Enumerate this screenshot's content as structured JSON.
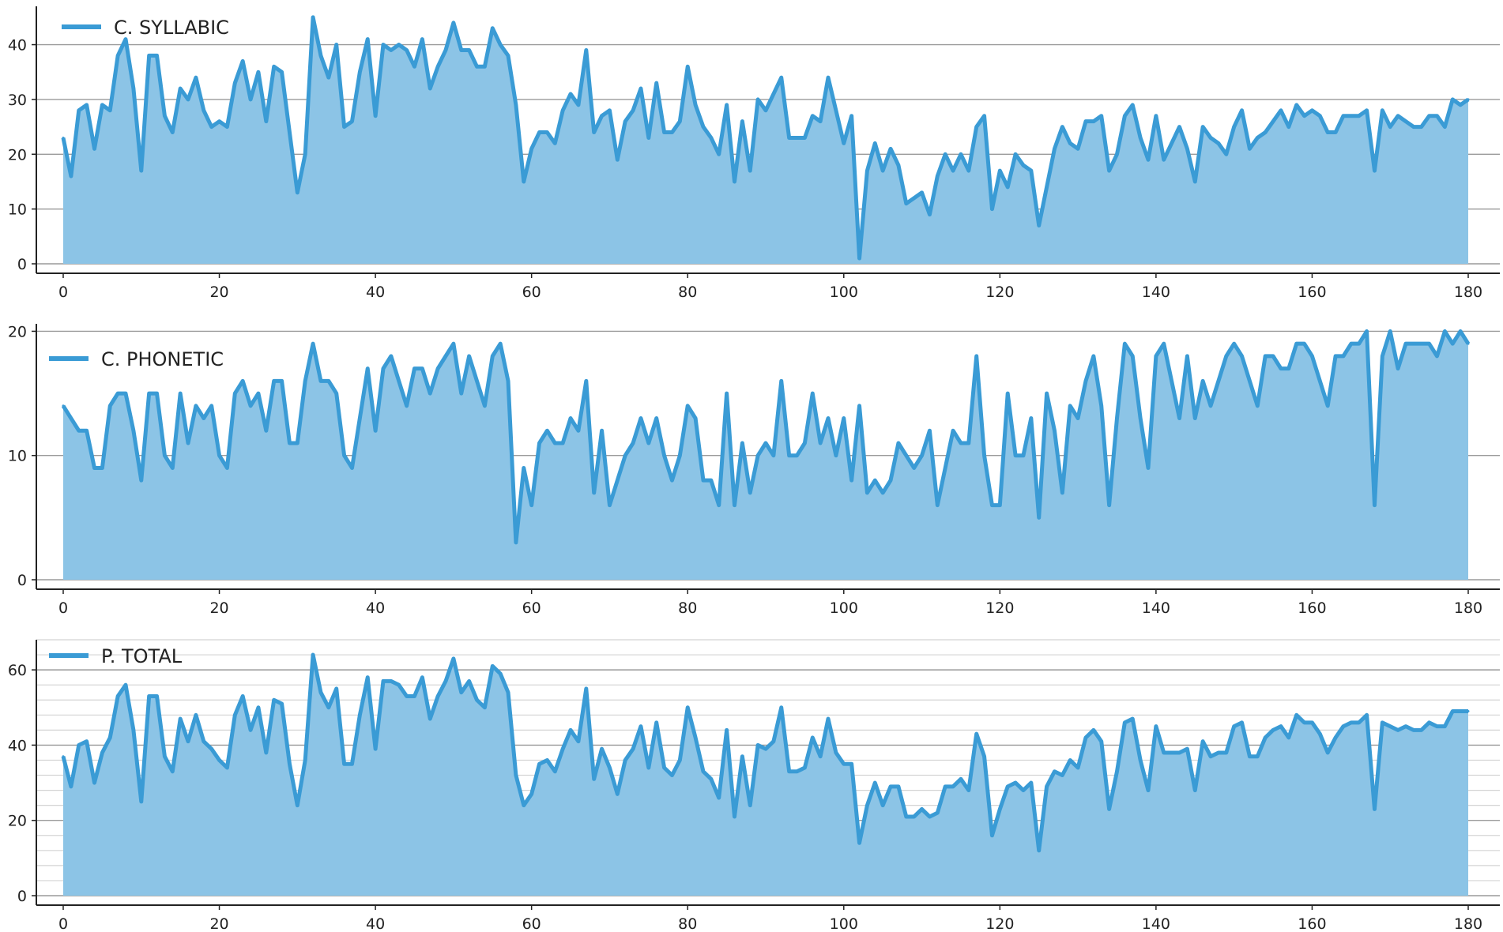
{
  "colors": {
    "line": "#3a9bd5",
    "fill": "#8cc4e6",
    "grid_major": "#9a9a9a",
    "grid_minor": "#d4d4d4",
    "axis": "#222222",
    "text": "#222222",
    "background": "#ffffff"
  },
  "chart_data": [
    {
      "type": "area",
      "series": [
        {
          "name": "C. SYLLABIC",
          "x_start": 0,
          "x_step": 1,
          "values": [
            23,
            16,
            28,
            29,
            21,
            29,
            28,
            38,
            41,
            32,
            17,
            38,
            38,
            27,
            24,
            32,
            30,
            34,
            28,
            25,
            26,
            25,
            33,
            37,
            30,
            35,
            26,
            36,
            35,
            24,
            13,
            20,
            45,
            38,
            34,
            40,
            25,
            26,
            35,
            41,
            27,
            40,
            39,
            40,
            39,
            36,
            41,
            32,
            36,
            39,
            44,
            39,
            39,
            36,
            36,
            43,
            40,
            38,
            29,
            15,
            21,
            24,
            24,
            22,
            28,
            31,
            29,
            39,
            24,
            27,
            28,
            19,
            26,
            28,
            32,
            23,
            33,
            24,
            24,
            26,
            36,
            29,
            25,
            23,
            20,
            29,
            15,
            26,
            17,
            30,
            28,
            31,
            34,
            23,
            23,
            23,
            27,
            26,
            34,
            28,
            22,
            27,
            1,
            17,
            22,
            17,
            21,
            18,
            11,
            12,
            13,
            9,
            16,
            20,
            17,
            20,
            17,
            25,
            27,
            10,
            17,
            14,
            20,
            18,
            17,
            7,
            14,
            21,
            25,
            22,
            21,
            26,
            26,
            27,
            17,
            20,
            27,
            29,
            23,
            19,
            27,
            19,
            22,
            25,
            21,
            15,
            25,
            23,
            22,
            20,
            25,
            28,
            21,
            23,
            24,
            26,
            28,
            25,
            29,
            27,
            28,
            27,
            24,
            24,
            27,
            27,
            27,
            28,
            17,
            28,
            25,
            27,
            26,
            25,
            25,
            27,
            27,
            25,
            30,
            29,
            30
          ]
        }
      ],
      "xlim": [
        0,
        180
      ],
      "ylim": [
        0,
        47
      ],
      "x_ticks": [
        0,
        20,
        40,
        60,
        80,
        100,
        120,
        140,
        160,
        180
      ],
      "y_ticks": [
        0,
        10,
        20,
        30,
        40
      ],
      "grid": true,
      "legend": "top-left"
    },
    {
      "type": "area",
      "series": [
        {
          "name": "C. PHONETIC",
          "x_start": 0,
          "x_step": 1,
          "values": [
            14,
            13,
            12,
            12,
            9,
            9,
            14,
            15,
            15,
            12,
            8,
            15,
            15,
            10,
            9,
            15,
            11,
            14,
            13,
            14,
            10,
            9,
            15,
            16,
            14,
            15,
            12,
            16,
            16,
            11,
            11,
            16,
            19,
            16,
            16,
            15,
            10,
            9,
            13,
            17,
            12,
            17,
            18,
            16,
            14,
            17,
            17,
            15,
            17,
            18,
            19,
            15,
            18,
            16,
            14,
            18,
            19,
            16,
            3,
            9,
            6,
            11,
            12,
            11,
            11,
            13,
            12,
            16,
            7,
            12,
            6,
            8,
            10,
            11,
            13,
            11,
            13,
            10,
            8,
            10,
            14,
            13,
            8,
            8,
            6,
            15,
            6,
            11,
            7,
            10,
            11,
            10,
            16,
            10,
            10,
            11,
            15,
            11,
            13,
            10,
            13,
            8,
            14,
            7,
            8,
            7,
            8,
            11,
            10,
            9,
            10,
            12,
            6,
            9,
            12,
            11,
            11,
            18,
            10,
            6,
            6,
            15,
            10,
            10,
            13,
            5,
            15,
            12,
            7,
            14,
            13,
            16,
            18,
            14,
            6,
            13,
            19,
            18,
            13,
            9,
            18,
            19,
            16,
            13,
            18,
            13,
            16,
            14,
            16,
            18,
            19,
            18,
            16,
            14,
            18,
            18,
            17,
            17,
            19,
            19,
            18,
            16,
            14,
            18,
            18,
            19,
            19,
            20,
            6,
            18,
            20,
            17,
            19,
            19,
            19,
            19,
            18,
            20,
            19,
            20,
            19
          ]
        }
      ],
      "xlim": [
        0,
        180
      ],
      "ylim": [
        0,
        20.6
      ],
      "x_ticks": [
        0,
        20,
        40,
        60,
        80,
        100,
        120,
        140,
        160,
        180
      ],
      "y_ticks": [
        0,
        10,
        20
      ],
      "grid": true,
      "legend": "top-left"
    },
    {
      "type": "area",
      "series": [
        {
          "name": "P. TOTAL",
          "x_start": 0,
          "x_step": 1,
          "values": [
            37,
            29,
            40,
            41,
            30,
            38,
            42,
            53,
            56,
            44,
            25,
            53,
            53,
            37,
            33,
            47,
            41,
            48,
            41,
            39,
            36,
            34,
            48,
            53,
            44,
            50,
            38,
            52,
            51,
            35,
            24,
            36,
            64,
            54,
            50,
            55,
            35,
            35,
            48,
            58,
            39,
            57,
            57,
            56,
            53,
            53,
            58,
            47,
            53,
            57,
            63,
            54,
            57,
            52,
            50,
            61,
            59,
            54,
            32,
            24,
            27,
            35,
            36,
            33,
            39,
            44,
            41,
            55,
            31,
            39,
            34,
            27,
            36,
            39,
            45,
            34,
            46,
            34,
            32,
            36,
            50,
            42,
            33,
            31,
            26,
            44,
            21,
            37,
            24,
            40,
            39,
            41,
            50,
            33,
            33,
            34,
            42,
            37,
            47,
            38,
            35,
            35,
            14,
            24,
            30,
            24,
            29,
            29,
            21,
            21,
            23,
            21,
            22,
            29,
            29,
            31,
            28,
            43,
            37,
            16,
            23,
            29,
            30,
            28,
            30,
            12,
            29,
            33,
            32,
            36,
            34,
            42,
            44,
            41,
            23,
            33,
            46,
            47,
            36,
            28,
            45,
            38,
            38,
            38,
            39,
            28,
            41,
            37,
            38,
            38,
            45,
            46,
            37,
            37,
            42,
            44,
            45,
            42,
            48,
            46,
            46,
            43,
            38,
            42,
            45,
            46,
            46,
            48,
            23,
            46,
            45,
            44,
            45,
            44,
            44,
            46,
            45,
            45,
            49,
            49,
            49
          ]
        }
      ],
      "xlim": [
        0,
        180
      ],
      "ylim": [
        0,
        68
      ],
      "x_ticks": [
        0,
        20,
        40,
        60,
        80,
        100,
        120,
        140,
        160,
        180
      ],
      "y_ticks": [
        0,
        20,
        40,
        60
      ],
      "y_minor_step": 10,
      "grid": true,
      "legend": "top-left"
    }
  ]
}
